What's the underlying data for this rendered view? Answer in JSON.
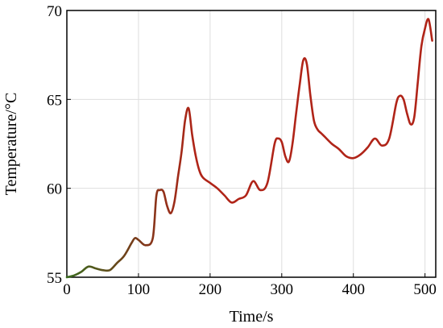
{
  "chart_data": {
    "type": "line",
    "xlabel": "Time/s",
    "ylabel": "Temperature/°C",
    "xlim": [
      0,
      515
    ],
    "ylim": [
      55,
      70
    ],
    "xticks": [
      0,
      100,
      200,
      300,
      400,
      500
    ],
    "yticks": [
      55,
      60,
      65,
      70
    ],
    "grid": true,
    "colors": {
      "line": "#b02418",
      "line_start": "#3a6b1e",
      "axis": "#000000",
      "grid": "#dedede"
    },
    "series": [
      {
        "x": [
          0,
          10,
          20,
          30,
          40,
          50,
          60,
          70,
          80,
          90,
          95,
          100,
          110,
          120,
          125,
          130,
          135,
          140,
          145,
          150,
          155,
          160,
          165,
          170,
          175,
          180,
          185,
          190,
          200,
          210,
          220,
          230,
          240,
          250,
          260,
          270,
          280,
          290,
          295,
          300,
          305,
          310,
          315,
          320,
          325,
          330,
          335,
          340,
          345,
          350,
          355,
          360,
          370,
          380,
          390,
          400,
          410,
          420,
          430,
          440,
          450,
          460,
          465,
          470,
          475,
          480,
          485,
          490,
          495,
          500,
          505,
          510
        ],
        "y": [
          55.0,
          55.1,
          55.3,
          55.6,
          55.5,
          55.4,
          55.4,
          55.8,
          56.2,
          56.9,
          57.2,
          57.1,
          56.8,
          57.2,
          59.6,
          59.9,
          59.8,
          59.0,
          58.6,
          59.2,
          60.6,
          62.0,
          63.8,
          64.5,
          63.0,
          61.8,
          61.0,
          60.6,
          60.3,
          60.0,
          59.6,
          59.2,
          59.4,
          59.6,
          60.4,
          59.9,
          60.3,
          62.5,
          62.8,
          62.6,
          61.8,
          61.5,
          62.5,
          64.2,
          65.8,
          67.2,
          67.0,
          65.2,
          63.8,
          63.3,
          63.1,
          62.9,
          62.5,
          62.2,
          61.8,
          61.7,
          61.9,
          62.3,
          62.8,
          62.4,
          62.8,
          64.8,
          65.2,
          65.0,
          64.2,
          63.6,
          64.0,
          66.0,
          68.0,
          69.0,
          69.5,
          68.3
        ]
      }
    ]
  }
}
